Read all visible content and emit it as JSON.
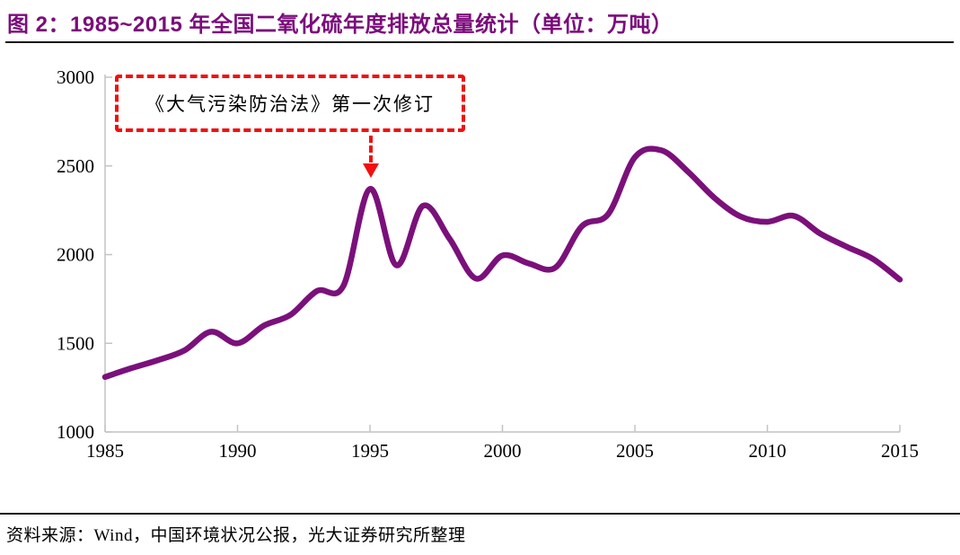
{
  "header": {
    "title": "图 2：1985~2015 年全国二氧化硫年度排放总量统计（单位：万吨）"
  },
  "footer": {
    "source": "资料来源：Wind，中国环境状况公报，光大证券研究所整理"
  },
  "chart_data": {
    "type": "line",
    "figure_label": "图 2",
    "title": "1985~2015 年全国二氧化硫年度排放总量统计",
    "unit": "万吨",
    "x": [
      1985,
      1986,
      1987,
      1988,
      1989,
      1990,
      1991,
      1992,
      1993,
      1994,
      1995,
      1996,
      1997,
      1998,
      1999,
      2000,
      2001,
      2002,
      2003,
      2004,
      2005,
      2006,
      2007,
      2008,
      2009,
      2010,
      2011,
      2012,
      2013,
      2014,
      2015
    ],
    "series": [
      {
        "name": "全国二氧化硫年度排放总量（万吨）",
        "values": [
          1310,
          1360,
          1405,
          1460,
          1565,
          1500,
          1600,
          1660,
          1795,
          1825,
          2370,
          1940,
          2275,
          2090,
          1865,
          1995,
          1950,
          1927,
          2160,
          2230,
          2549,
          2588,
          2468,
          2320,
          2214,
          2185,
          2218,
          2118,
          2044,
          1974,
          1859
        ]
      }
    ],
    "ylim": [
      1000,
      3000
    ],
    "yticks": [
      1000,
      1500,
      2000,
      2500,
      3000
    ],
    "xticks": [
      1985,
      1990,
      1995,
      2000,
      2005,
      2010,
      2015
    ],
    "grid": false,
    "legend_position": "none",
    "smooth": true,
    "annotation": {
      "text": "《大气污染防治法》第一次修订",
      "arrow_target_year": 1995,
      "arrow_target_value": 2370
    },
    "colors": {
      "line": "#7B107B",
      "axis": "#C4C4C4",
      "annotation": "#F01010",
      "title": "#7B0C7B",
      "text": "#000000"
    }
  }
}
